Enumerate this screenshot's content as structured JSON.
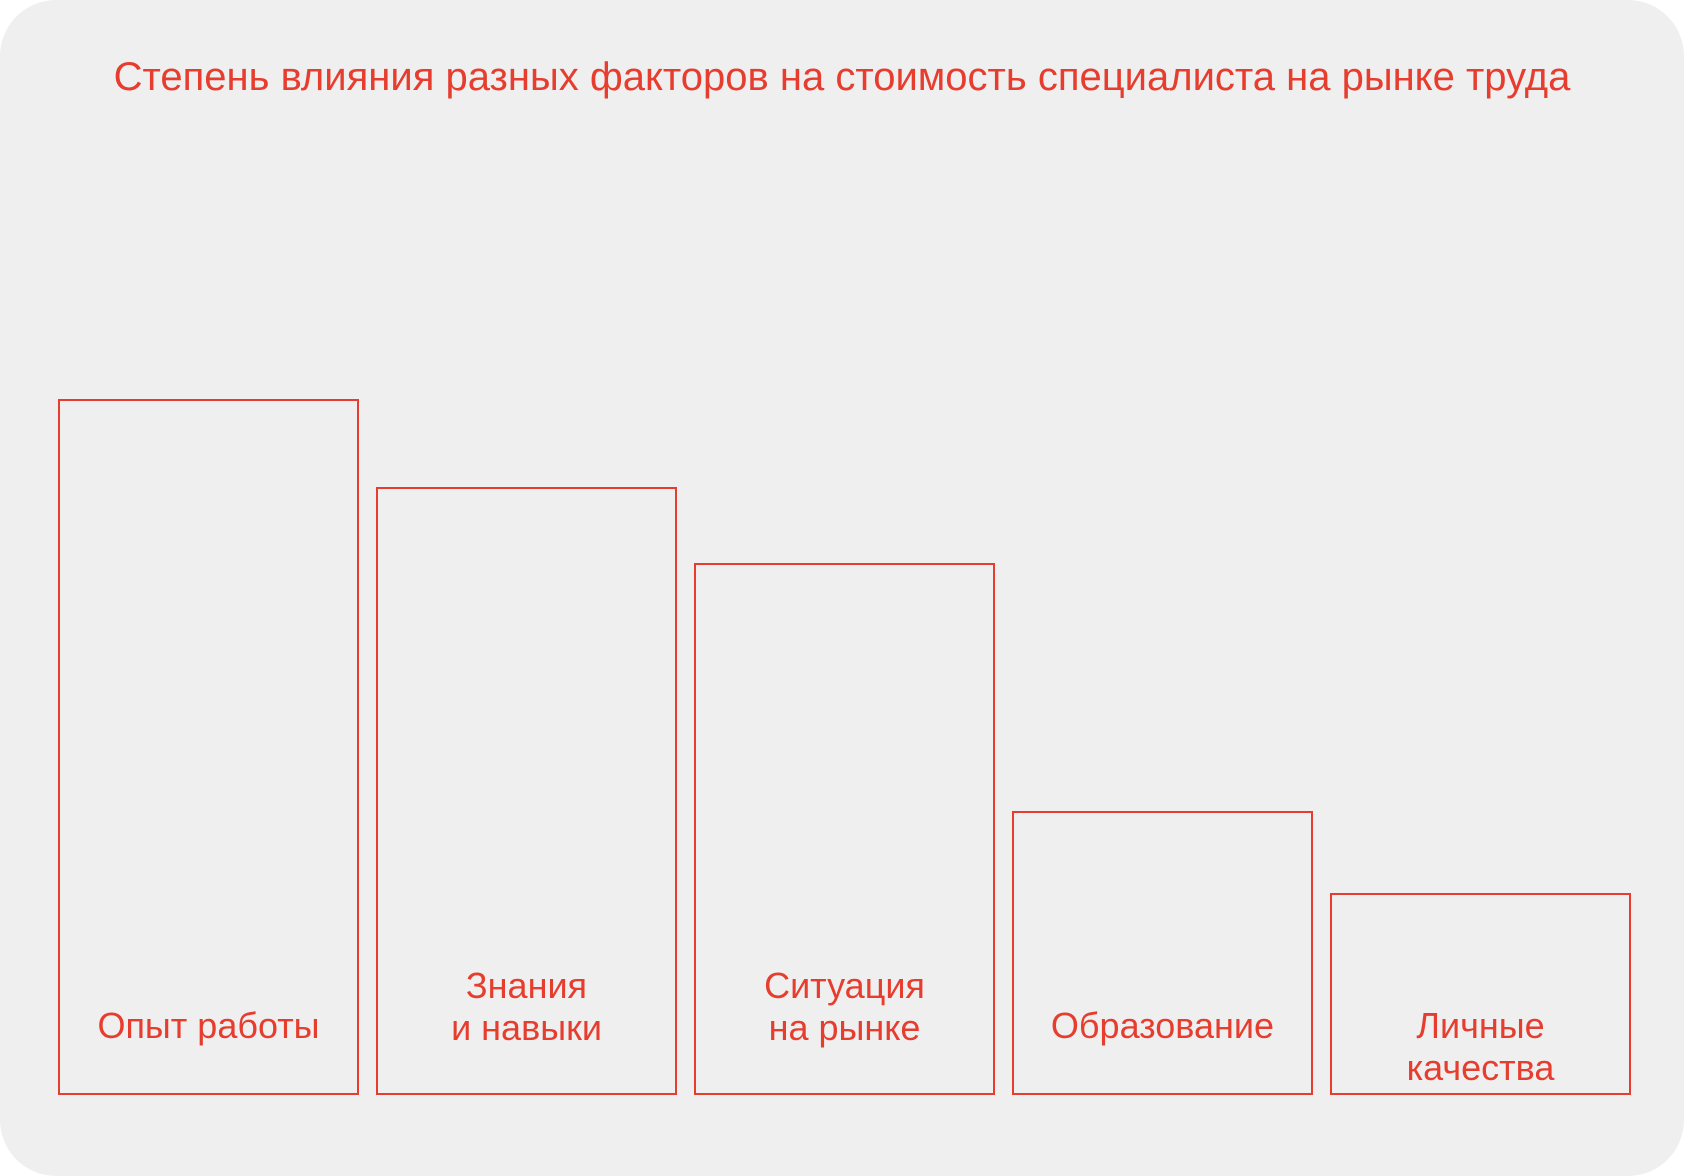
{
  "chart_data": {
    "type": "bar",
    "title": "Степень влияния разных факторов на стоимость специалиста на рынке труда",
    "xlabel": "",
    "ylabel": "",
    "categories": [
      "Опыт работы",
      "Знания\nи навыки",
      "Ситуация\nна рынке",
      "Образование",
      "Личные\nкачества"
    ],
    "values": [
      696,
      608,
      532,
      284,
      202
    ],
    "ylim": [
      0,
      960
    ],
    "grid": false,
    "colors": {
      "background": "#efefef",
      "accent": "#e63d2e"
    }
  }
}
